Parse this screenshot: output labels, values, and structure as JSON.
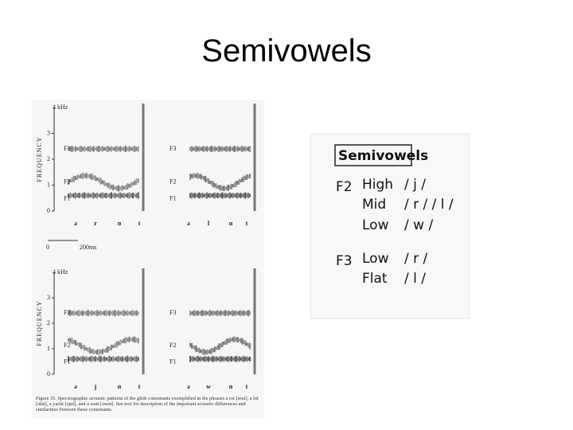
{
  "title": "Semivowels",
  "figure": {
    "y_axis_label": "FREQUENCY",
    "axis_unit": "4 kHz",
    "y_labels": [
      "3",
      "2",
      "1",
      "0"
    ],
    "panels": [
      {
        "formants": [
          "F3",
          "F2",
          "F1"
        ],
        "phonemes": [
          "ə",
          "r",
          "ɑ",
          "t"
        ]
      },
      {
        "formants": [
          "F3",
          "F2",
          "F1"
        ],
        "phonemes": [
          "ə",
          "l",
          "ɑ",
          "t"
        ]
      },
      {
        "formants": [
          "F3",
          "F2",
          "F1"
        ],
        "phonemes": [
          "ə",
          "j",
          "ɑ",
          "t"
        ]
      },
      {
        "formants": [
          "F3",
          "F2",
          "F1"
        ],
        "phonemes": [
          "ə",
          "w",
          "ɑ",
          "t"
        ]
      }
    ],
    "time_scale": [
      "0",
      "200ms"
    ],
    "caption": "Figure 35. Spectrographic acoustic patterns of the glide consonants exemplified in the phrases a rot [ərɑt], a lot [əlɑt], a yacht [əjɑt], and a watt [əwɑt]. See text for description of the important acoustic differences and similarities between these consonants."
  },
  "table": {
    "heading": "Semivowels",
    "rows": [
      {
        "group": "F2",
        "feature": "High",
        "symbols": "/ j /"
      },
      {
        "group": null,
        "feature": "Mid",
        "symbols": "/ r / / l /"
      },
      {
        "group": null,
        "feature": "Low",
        "symbols": "/ w /"
      },
      {
        "group": "F3",
        "feature": "Low",
        "symbols": "/ r /"
      },
      {
        "group": null,
        "feature": "Flat",
        "symbols": "/ l /"
      }
    ]
  }
}
